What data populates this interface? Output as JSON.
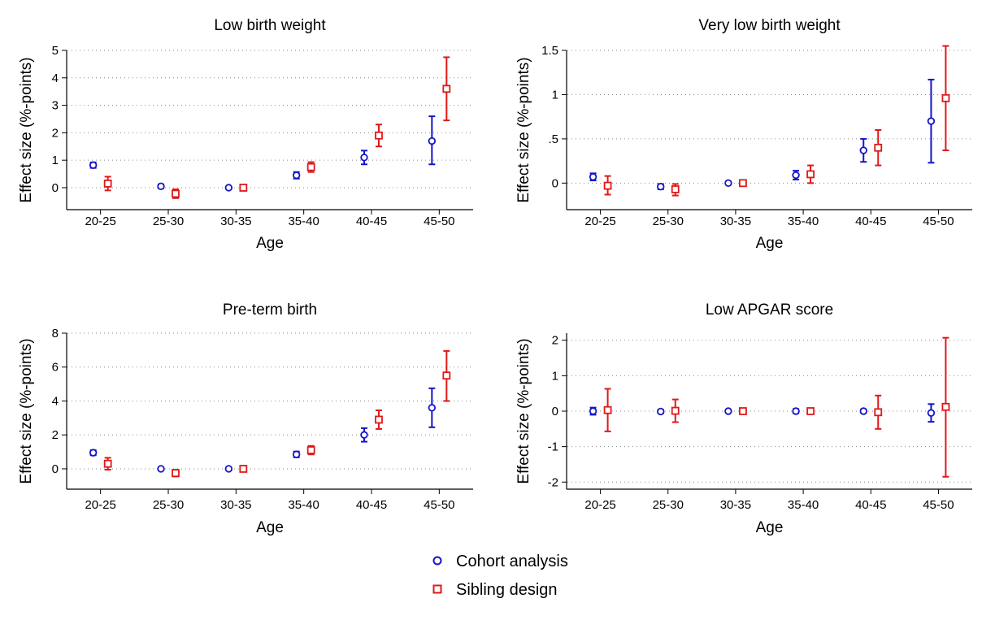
{
  "chart_data": [
    {
      "type": "scatter",
      "title": "Low birth weight",
      "xlabel": "Age",
      "ylabel": "Effect size (%-points)",
      "categories": [
        "20-25",
        "25-30",
        "30-35",
        "35-40",
        "40-45",
        "45-50"
      ],
      "ylim": [
        -0.8,
        5
      ],
      "yticks": [
        0,
        1,
        2,
        3,
        4,
        5
      ],
      "ytick_labels": [
        "0",
        "1",
        "2",
        "3",
        "4",
        "5"
      ],
      "grid": true,
      "series": [
        {
          "name": "Cohort analysis",
          "marker": "circle",
          "color": "#1515c8",
          "values": [
            0.82,
            0.05,
            0.0,
            0.45,
            1.1,
            1.7
          ],
          "lower": [
            0.72,
            -0.02,
            0.0,
            0.33,
            0.85,
            0.85
          ],
          "upper": [
            0.92,
            0.12,
            0.0,
            0.57,
            1.35,
            2.6
          ]
        },
        {
          "name": "Sibling design",
          "marker": "square",
          "color": "#e01818",
          "values": [
            0.15,
            -0.22,
            0.0,
            0.75,
            1.9,
            3.6
          ],
          "lower": [
            -0.1,
            -0.38,
            0.0,
            0.57,
            1.5,
            2.45
          ],
          "upper": [
            0.4,
            -0.06,
            0.0,
            0.93,
            2.3,
            4.75
          ]
        }
      ]
    },
    {
      "type": "scatter",
      "title": "Very low birth weight",
      "xlabel": "Age",
      "ylabel": "Effect size (%-points)",
      "categories": [
        "20-25",
        "25-30",
        "30-35",
        "35-40",
        "40-45",
        "45-50"
      ],
      "ylim": [
        -0.3,
        1.5
      ],
      "yticks": [
        0,
        0.5,
        1,
        1.5
      ],
      "ytick_labels": [
        "0",
        ".5",
        "1",
        "1.5"
      ],
      "grid": true,
      "series": [
        {
          "name": "Cohort analysis",
          "marker": "circle",
          "color": "#1515c8",
          "values": [
            0.07,
            -0.04,
            0.0,
            0.09,
            0.37,
            0.7
          ],
          "lower": [
            0.03,
            -0.07,
            0.0,
            0.04,
            0.24,
            0.23
          ],
          "upper": [
            0.11,
            -0.01,
            0.0,
            0.14,
            0.5,
            1.17
          ]
        },
        {
          "name": "Sibling design",
          "marker": "square",
          "color": "#e01818",
          "values": [
            -0.03,
            -0.07,
            0.0,
            0.1,
            0.4,
            0.96
          ],
          "lower": [
            -0.13,
            -0.14,
            0.0,
            0.0,
            0.2,
            0.37
          ],
          "upper": [
            0.08,
            -0.01,
            0.0,
            0.2,
            0.6,
            1.55
          ]
        }
      ]
    },
    {
      "type": "scatter",
      "title": "Pre-term birth",
      "xlabel": "Age",
      "ylabel": "Effect size (%-points)",
      "categories": [
        "20-25",
        "25-30",
        "30-35",
        "35-40",
        "40-45",
        "45-50"
      ],
      "ylim": [
        -1.2,
        8
      ],
      "yticks": [
        0,
        2,
        4,
        6,
        8
      ],
      "ytick_labels": [
        "0",
        "2",
        "4",
        "6",
        "8"
      ],
      "grid": true,
      "series": [
        {
          "name": "Cohort analysis",
          "marker": "circle",
          "color": "#1515c8",
          "values": [
            0.95,
            0.0,
            0.0,
            0.85,
            2.0,
            3.6
          ],
          "lower": [
            0.8,
            -0.05,
            0.0,
            0.68,
            1.6,
            2.45
          ],
          "upper": [
            1.1,
            0.05,
            0.0,
            1.02,
            2.4,
            4.75
          ]
        },
        {
          "name": "Sibling design",
          "marker": "square",
          "color": "#e01818",
          "values": [
            0.3,
            -0.25,
            0.0,
            1.1,
            2.9,
            5.5
          ],
          "lower": [
            -0.05,
            -0.45,
            0.0,
            0.85,
            2.35,
            4.0
          ],
          "upper": [
            0.65,
            -0.05,
            0.0,
            1.35,
            3.45,
            6.95
          ]
        }
      ]
    },
    {
      "type": "scatter",
      "title": "Low APGAR score",
      "xlabel": "Age",
      "ylabel": "Effect size (%-points)",
      "categories": [
        "20-25",
        "25-30",
        "30-35",
        "35-40",
        "40-45",
        "45-50"
      ],
      "ylim": [
        -2.2,
        2.2
      ],
      "yticks": [
        -2,
        -1,
        0,
        1,
        2
      ],
      "ytick_labels": [
        "-2",
        "-1",
        "0",
        "1",
        "2"
      ],
      "grid": true,
      "series": [
        {
          "name": "Cohort analysis",
          "marker": "circle",
          "color": "#1515c8",
          "values": [
            0.0,
            -0.01,
            0.0,
            0.0,
            0.0,
            -0.05
          ],
          "lower": [
            -0.1,
            -0.06,
            0.0,
            -0.06,
            -0.05,
            -0.3
          ],
          "upper": [
            0.1,
            0.04,
            0.0,
            0.06,
            0.05,
            0.2
          ]
        },
        {
          "name": "Sibling design",
          "marker": "square",
          "color": "#e01818",
          "values": [
            0.03,
            0.01,
            0.0,
            0.0,
            -0.03,
            0.12
          ],
          "lower": [
            -0.57,
            -0.31,
            0.0,
            -0.05,
            -0.5,
            -1.85
          ],
          "upper": [
            0.63,
            0.33,
            0.0,
            0.05,
            0.44,
            2.07
          ]
        }
      ]
    }
  ],
  "legend": {
    "placement": "bottom-center",
    "items": [
      {
        "label": "Cohort analysis",
        "marker": "circle",
        "color": "#1515c8"
      },
      {
        "label": "Sibling design",
        "marker": "square",
        "color": "#e01818"
      }
    ]
  }
}
